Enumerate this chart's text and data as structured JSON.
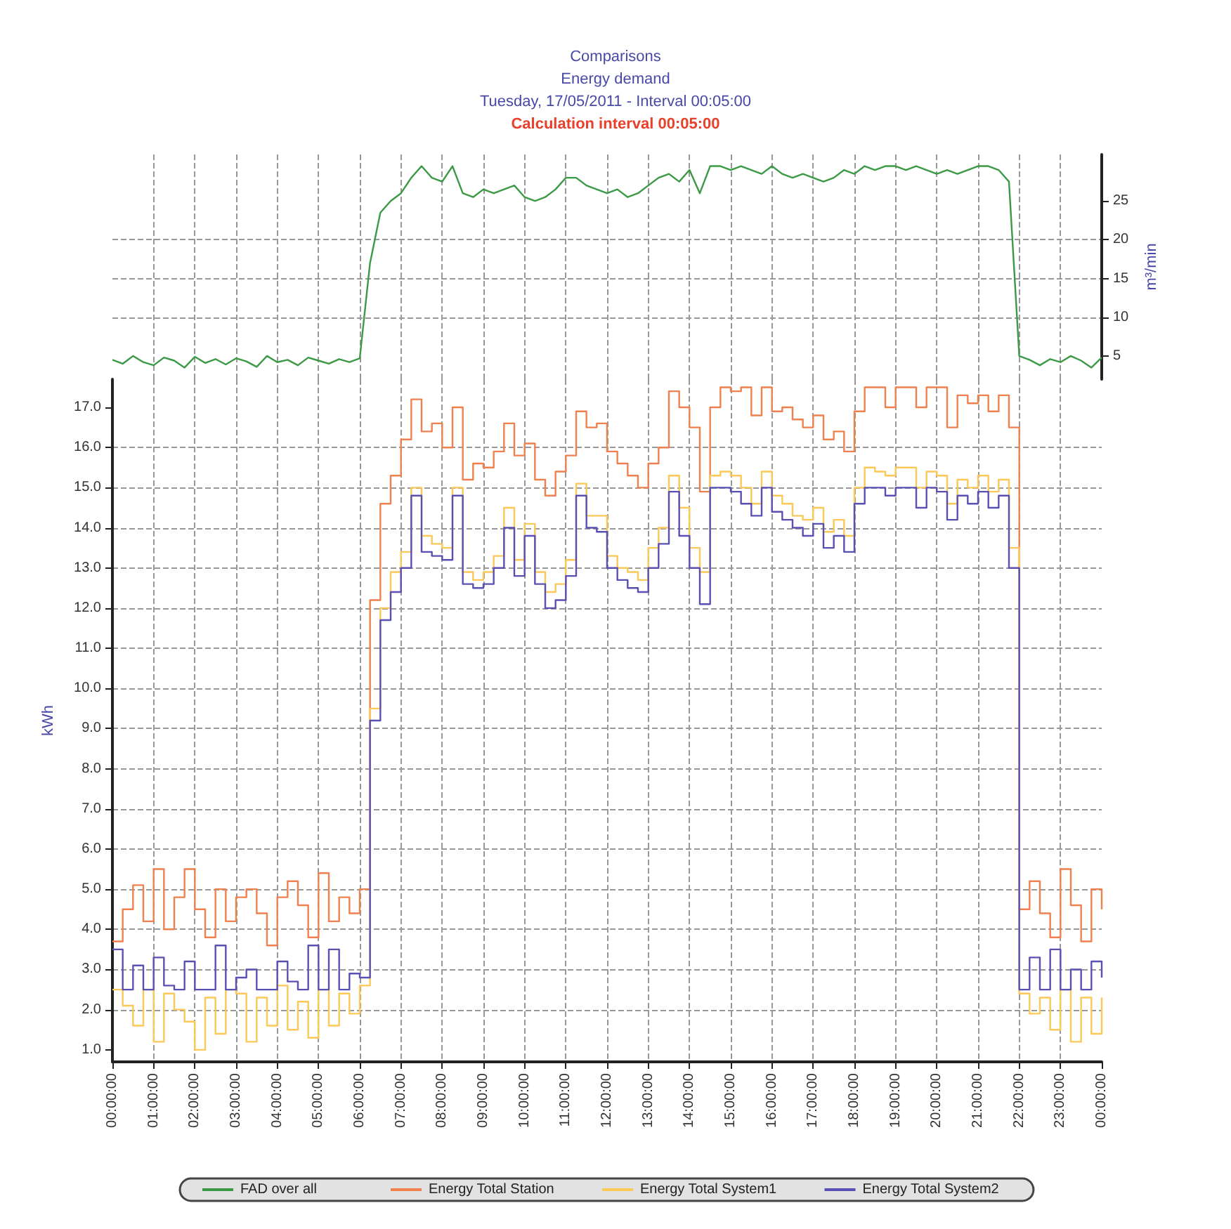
{
  "chart_data": [
    {
      "type": "line",
      "title": "Comparisons",
      "subtitle": "Energy demand",
      "annotations": [
        "Tuesday, 17/05/2011 - Interval 00:05:00",
        "Calculation interval 00:05:00"
      ],
      "ylabel": "m³/min",
      "x": [
        "2011-05-17T00:00",
        "2011-05-17T00:15",
        "2011-05-17T00:30",
        "2011-05-17T00:45",
        "2011-05-17T01:00",
        "2011-05-17T01:15",
        "2011-05-17T01:30",
        "2011-05-17T01:45",
        "2011-05-17T02:00",
        "2011-05-17T02:15",
        "2011-05-17T02:30",
        "2011-05-17T02:45",
        "2011-05-17T03:00",
        "2011-05-17T03:15",
        "2011-05-17T03:30",
        "2011-05-17T03:45",
        "2011-05-17T04:00",
        "2011-05-17T04:15",
        "2011-05-17T04:30",
        "2011-05-17T04:45",
        "2011-05-17T05:00",
        "2011-05-17T05:15",
        "2011-05-17T05:30",
        "2011-05-17T05:45",
        "2011-05-17T06:00",
        "2011-05-17T06:15",
        "2011-05-17T06:30",
        "2011-05-17T06:45",
        "2011-05-17T07:00",
        "2011-05-17T07:15",
        "2011-05-17T07:30",
        "2011-05-17T07:45",
        "2011-05-17T08:00",
        "2011-05-17T08:15",
        "2011-05-17T08:30",
        "2011-05-17T08:45",
        "2011-05-17T09:00",
        "2011-05-17T09:15",
        "2011-05-17T09:30",
        "2011-05-17T09:45",
        "2011-05-17T10:00",
        "2011-05-17T10:15",
        "2011-05-17T10:30",
        "2011-05-17T10:45",
        "2011-05-17T11:00",
        "2011-05-17T11:15",
        "2011-05-17T11:30",
        "2011-05-17T11:45",
        "2011-05-17T12:00",
        "2011-05-17T12:15",
        "2011-05-17T12:30",
        "2011-05-17T12:45",
        "2011-05-17T13:00",
        "2011-05-17T13:15",
        "2011-05-17T13:30",
        "2011-05-17T13:45",
        "2011-05-17T14:00",
        "2011-05-17T14:15",
        "2011-05-17T14:30",
        "2011-05-17T14:45",
        "2011-05-17T15:00",
        "2011-05-17T15:15",
        "2011-05-17T15:30",
        "2011-05-17T15:45",
        "2011-05-17T16:00",
        "2011-05-17T16:15",
        "2011-05-17T16:30",
        "2011-05-17T16:45",
        "2011-05-17T17:00",
        "2011-05-17T17:15",
        "2011-05-17T17:30",
        "2011-05-17T17:45",
        "2011-05-17T18:00",
        "2011-05-17T18:15",
        "2011-05-17T18:30",
        "2011-05-17T18:45",
        "2011-05-17T19:00",
        "2011-05-17T19:15",
        "2011-05-17T19:30",
        "2011-05-17T19:45",
        "2011-05-17T20:00",
        "2011-05-17T20:15",
        "2011-05-17T20:30",
        "2011-05-17T20:45",
        "2011-05-17T21:00",
        "2011-05-17T21:15",
        "2011-05-17T21:30",
        "2011-05-17T21:45",
        "2011-05-17T22:00",
        "2011-05-17T22:15",
        "2011-05-17T22:30",
        "2011-05-17T22:45",
        "2011-05-17T23:00",
        "2011-05-17T23:15",
        "2011-05-17T23:30",
        "2011-05-17T23:45",
        "2011-05-18T00:00"
      ],
      "series": [
        {
          "name": "FAD over all",
          "color": "#3c9a46",
          "values": [
            4.5,
            4,
            5,
            4.2,
            3.8,
            4.8,
            4.4,
            3.5,
            4.9,
            4.1,
            4.6,
            3.9,
            4.7,
            4.3,
            3.6,
            5,
            4.2,
            4.5,
            3.8,
            4.8,
            4.4,
            4,
            4.6,
            4.2,
            4.7,
            17,
            23.5,
            25,
            26,
            28,
            29.5,
            28,
            27.5,
            29.5,
            26,
            25.5,
            26.5,
            26,
            26.5,
            27,
            25.5,
            25,
            25.5,
            26.5,
            28,
            28,
            27,
            26.5,
            26,
            26.5,
            25.5,
            26,
            27,
            28,
            28.5,
            27.5,
            29,
            26,
            29.5,
            29.5,
            29,
            29.5,
            29,
            28.5,
            29.5,
            28.5,
            28,
            28.5,
            28,
            27.5,
            28,
            29,
            28.5,
            29.5,
            29,
            29.5,
            29.5,
            29,
            29.5,
            29,
            28.5,
            29,
            28.5,
            29,
            29.5,
            29.5,
            29,
            27.5,
            5,
            4.5,
            3.8,
            4.6,
            4.2,
            5,
            4.4,
            3.5,
            4.8
          ]
        }
      ],
      "xlim": [
        "2011-05-17T00:00",
        "2011-05-18T00:00"
      ],
      "xticks": [
        {
          "value": "2011-05-17T00:00",
          "label": null
        },
        {
          "value": "2011-05-17T01:00",
          "label": null
        },
        {
          "value": "2011-05-17T02:00",
          "label": null
        },
        {
          "value": "2011-05-17T03:00",
          "label": null
        },
        {
          "value": "2011-05-17T04:00",
          "label": null
        },
        {
          "value": "2011-05-17T05:00",
          "label": null
        },
        {
          "value": "2011-05-17T06:00",
          "label": null
        },
        {
          "value": "2011-05-17T07:00",
          "label": null
        },
        {
          "value": "2011-05-17T08:00",
          "label": null
        },
        {
          "value": "2011-05-17T09:00",
          "label": null
        },
        {
          "value": "2011-05-17T10:00",
          "label": null
        },
        {
          "value": "2011-05-17T11:00",
          "label": null
        },
        {
          "value": "2011-05-17T12:00",
          "label": null
        },
        {
          "value": "2011-05-17T13:00",
          "label": null
        },
        {
          "value": "2011-05-17T14:00",
          "label": null
        },
        {
          "value": "2011-05-17T15:00",
          "label": null
        },
        {
          "value": "2011-05-17T16:00",
          "label": null
        },
        {
          "value": "2011-05-17T17:00",
          "label": null
        },
        {
          "value": "2011-05-17T18:00",
          "label": null
        },
        {
          "value": "2011-05-17T19:00",
          "label": null
        },
        {
          "value": "2011-05-17T20:00",
          "label": null
        },
        {
          "value": "2011-05-17T21:00",
          "label": null
        },
        {
          "value": "2011-05-17T22:00",
          "label": null
        },
        {
          "value": "2011-05-17T23:00",
          "label": null
        },
        {
          "value": "2011-05-18T00:00",
          "label": null
        }
      ],
      "ylim": [
        2,
        31
      ],
      "yticks": [
        5,
        10,
        15,
        20,
        25
      ],
      "tick_labels": "y",
      "grid": true,
      "legend": "bottom",
      "marker": "none",
      "line_style": "solid"
    },
    {
      "type": "step",
      "ylabel": "kWh",
      "x": [
        "2011-05-17T00:00",
        "2011-05-17T00:15",
        "2011-05-17T00:30",
        "2011-05-17T00:45",
        "2011-05-17T01:00",
        "2011-05-17T01:15",
        "2011-05-17T01:30",
        "2011-05-17T01:45",
        "2011-05-17T02:00",
        "2011-05-17T02:15",
        "2011-05-17T02:30",
        "2011-05-17T02:45",
        "2011-05-17T03:00",
        "2011-05-17T03:15",
        "2011-05-17T03:30",
        "2011-05-17T03:45",
        "2011-05-17T04:00",
        "2011-05-17T04:15",
        "2011-05-17T04:30",
        "2011-05-17T04:45",
        "2011-05-17T05:00",
        "2011-05-17T05:15",
        "2011-05-17T05:30",
        "2011-05-17T05:45",
        "2011-05-17T06:00",
        "2011-05-17T06:15",
        "2011-05-17T06:30",
        "2011-05-17T06:45",
        "2011-05-17T07:00",
        "2011-05-17T07:15",
        "2011-05-17T07:30",
        "2011-05-17T07:45",
        "2011-05-17T08:00",
        "2011-05-17T08:15",
        "2011-05-17T08:30",
        "2011-05-17T08:45",
        "2011-05-17T09:00",
        "2011-05-17T09:15",
        "2011-05-17T09:30",
        "2011-05-17T09:45",
        "2011-05-17T10:00",
        "2011-05-17T10:15",
        "2011-05-17T10:30",
        "2011-05-17T10:45",
        "2011-05-17T11:00",
        "2011-05-17T11:15",
        "2011-05-17T11:30",
        "2011-05-17T11:45",
        "2011-05-17T12:00",
        "2011-05-17T12:15",
        "2011-05-17T12:30",
        "2011-05-17T12:45",
        "2011-05-17T13:00",
        "2011-05-17T13:15",
        "2011-05-17T13:30",
        "2011-05-17T13:45",
        "2011-05-17T14:00",
        "2011-05-17T14:15",
        "2011-05-17T14:30",
        "2011-05-17T14:45",
        "2011-05-17T15:00",
        "2011-05-17T15:15",
        "2011-05-17T15:30",
        "2011-05-17T15:45",
        "2011-05-17T16:00",
        "2011-05-17T16:15",
        "2011-05-17T16:30",
        "2011-05-17T16:45",
        "2011-05-17T17:00",
        "2011-05-17T17:15",
        "2011-05-17T17:30",
        "2011-05-17T17:45",
        "2011-05-17T18:00",
        "2011-05-17T18:15",
        "2011-05-17T18:30",
        "2011-05-17T18:45",
        "2011-05-17T19:00",
        "2011-05-17T19:15",
        "2011-05-17T19:30",
        "2011-05-17T19:45",
        "2011-05-17T20:00",
        "2011-05-17T20:15",
        "2011-05-17T20:30",
        "2011-05-17T20:45",
        "2011-05-17T21:00",
        "2011-05-17T21:15",
        "2011-05-17T21:30",
        "2011-05-17T21:45",
        "2011-05-17T22:00",
        "2011-05-17T22:15",
        "2011-05-17T22:30",
        "2011-05-17T22:45",
        "2011-05-17T23:00",
        "2011-05-17T23:15",
        "2011-05-17T23:30",
        "2011-05-17T23:45",
        "2011-05-18T00:00"
      ],
      "series": [
        {
          "name": "Energy Total Station",
          "color": "#f0804e",
          "values": [
            3.7,
            4.5,
            5.1,
            4.2,
            5.5,
            4,
            4.8,
            5.5,
            4.5,
            3.8,
            5,
            4.2,
            4.8,
            5,
            4.4,
            3.6,
            4.8,
            5.2,
            4.6,
            3.8,
            5.4,
            4.2,
            4.8,
            4.4,
            5,
            12.2,
            14.6,
            15.3,
            16.2,
            17.2,
            16.4,
            16.6,
            16,
            17,
            15.2,
            15.6,
            15.5,
            15.9,
            16.6,
            15.8,
            16.1,
            15.2,
            14.8,
            15.4,
            15.8,
            16.9,
            16.5,
            16.6,
            15.9,
            15.6,
            15.3,
            15,
            15.6,
            16,
            17.4,
            17,
            16.5,
            14.9,
            17,
            17.5,
            17.4,
            17.5,
            16.8,
            17.5,
            16.9,
            17,
            16.7,
            16.5,
            16.8,
            16.2,
            16.4,
            15.9,
            16.9,
            17.5,
            17.5,
            17,
            17.5,
            17.5,
            17,
            17.5,
            17.5,
            16.5,
            17.3,
            17.1,
            17.3,
            16.9,
            17.3,
            16.5,
            4.5,
            5.2,
            4.4,
            3.8,
            5.5,
            4.6,
            3.7,
            5,
            4.5
          ]
        },
        {
          "name": "Energy Total System1",
          "color": "#fcc858",
          "values": [
            2.5,
            2.1,
            1.6,
            2.5,
            1.2,
            2.4,
            2,
            1.7,
            1,
            2.3,
            1.4,
            2.5,
            2.4,
            1.2,
            2.3,
            1.6,
            2.6,
            1.5,
            2.2,
            1.3,
            2.5,
            1.6,
            2.4,
            1.9,
            2.6,
            9.5,
            12,
            12.9,
            13.4,
            15,
            13.8,
            13.6,
            13.5,
            15,
            12.9,
            12.7,
            12.9,
            13.3,
            14.5,
            13.2,
            14.1,
            12.9,
            12.4,
            12.6,
            13.2,
            15.1,
            14.3,
            14.3,
            13.3,
            13,
            12.9,
            12.7,
            13.5,
            14,
            15.3,
            14.5,
            13.5,
            12.9,
            15.3,
            15.4,
            15.3,
            15,
            14.6,
            15.4,
            14.8,
            14.6,
            14.3,
            14.2,
            14.5,
            13.9,
            14.2,
            13.8,
            15,
            15.5,
            15.4,
            15.3,
            15.5,
            15.5,
            15,
            15.4,
            15.3,
            14.6,
            15.2,
            15,
            15.3,
            14.9,
            15.2,
            13.5,
            2.4,
            1.9,
            2.3,
            1.5,
            2.5,
            1.2,
            2.3,
            1.4,
            2.3
          ]
        },
        {
          "name": "Energy Total System2",
          "color": "#5a50b4",
          "values": [
            3.5,
            2.5,
            3.1,
            2.5,
            3.3,
            2.6,
            2.5,
            3.2,
            2.5,
            2.5,
            3.6,
            2.5,
            2.8,
            3,
            2.5,
            2.5,
            3.2,
            2.7,
            2.5,
            3.6,
            2.5,
            3.5,
            2.5,
            2.9,
            2.8,
            9.2,
            11.7,
            12.4,
            13,
            14.8,
            13.4,
            13.3,
            13.2,
            14.8,
            12.6,
            12.5,
            12.6,
            13,
            14,
            12.8,
            13.8,
            12.6,
            12,
            12.2,
            12.8,
            14.8,
            14,
            13.9,
            13,
            12.7,
            12.5,
            12.4,
            13,
            13.6,
            14.9,
            13.8,
            13,
            12.1,
            15,
            15,
            14.9,
            14.6,
            14.3,
            15,
            14.4,
            14.2,
            14,
            13.8,
            14.1,
            13.5,
            13.8,
            13.4,
            14.6,
            15,
            15,
            14.8,
            15,
            15,
            14.5,
            15,
            14.9,
            14.2,
            14.8,
            14.6,
            14.9,
            14.5,
            14.8,
            13,
            2.5,
            3.3,
            2.5,
            3.5,
            2.5,
            3,
            2.5,
            3.2,
            2.8
          ]
        }
      ],
      "xlim": [
        "2011-05-17T00:00",
        "2011-05-18T00:00"
      ],
      "xticks": [
        {
          "value": "2011-05-17T00:00",
          "label": "00:00:00"
        },
        {
          "value": "2011-05-17T01:00",
          "label": "01:00:00"
        },
        {
          "value": "2011-05-17T02:00",
          "label": "02:00:00"
        },
        {
          "value": "2011-05-17T03:00",
          "label": "03:00:00"
        },
        {
          "value": "2011-05-17T04:00",
          "label": "04:00:00"
        },
        {
          "value": "2011-05-17T05:00",
          "label": "05:00:00"
        },
        {
          "value": "2011-05-17T06:00",
          "label": "06:00:00"
        },
        {
          "value": "2011-05-17T07:00",
          "label": "07:00:00"
        },
        {
          "value": "2011-05-17T08:00",
          "label": "08:00:00"
        },
        {
          "value": "2011-05-17T09:00",
          "label": "09:00:00"
        },
        {
          "value": "2011-05-17T10:00",
          "label": "10:00:00"
        },
        {
          "value": "2011-05-17T11:00",
          "label": "11:00:00"
        },
        {
          "value": "2011-05-17T12:00",
          "label": "12:00:00"
        },
        {
          "value": "2011-05-17T13:00",
          "label": "13:00:00"
        },
        {
          "value": "2011-05-17T14:00",
          "label": "14:00:00"
        },
        {
          "value": "2011-05-17T15:00",
          "label": "15:00:00"
        },
        {
          "value": "2011-05-17T16:00",
          "label": "16:00:00"
        },
        {
          "value": "2011-05-17T17:00",
          "label": "17:00:00"
        },
        {
          "value": "2011-05-17T18:00",
          "label": "18:00:00"
        },
        {
          "value": "2011-05-17T19:00",
          "label": "19:00:00"
        },
        {
          "value": "2011-05-17T20:00",
          "label": "20:00:00"
        },
        {
          "value": "2011-05-17T21:00",
          "label": "21:00:00"
        },
        {
          "value": "2011-05-17T22:00",
          "label": "22:00:00"
        },
        {
          "value": "2011-05-17T23:00",
          "label": "23:00:00"
        },
        {
          "value": "2011-05-18T00:00",
          "label": "00:00:00"
        }
      ],
      "ylim": [
        0.7,
        17.7
      ],
      "yticks": [
        {
          "value": 1,
          "label": "1.0"
        },
        {
          "value": 2,
          "label": "2.0"
        },
        {
          "value": 3,
          "label": "3.0"
        },
        {
          "value": 4,
          "label": "4.0"
        },
        {
          "value": 5,
          "label": "5.0"
        },
        {
          "value": 6,
          "label": "6.0"
        },
        {
          "value": 7,
          "label": "7.0"
        },
        {
          "value": 8,
          "label": "8.0"
        },
        {
          "value": 9,
          "label": "9.0"
        },
        {
          "value": 10,
          "label": "10.0"
        },
        {
          "value": 11,
          "label": "11.0"
        },
        {
          "value": 12,
          "label": "12.0"
        },
        {
          "value": 13,
          "label": "13.0"
        },
        {
          "value": 14,
          "label": "14.0"
        },
        {
          "value": 15,
          "label": "15.0"
        },
        {
          "value": 16,
          "label": "16.0"
        },
        {
          "value": 17,
          "label": "17.0"
        }
      ],
      "grid": true,
      "legend": "bottom",
      "marker": "none",
      "line_style": "solid"
    }
  ]
}
